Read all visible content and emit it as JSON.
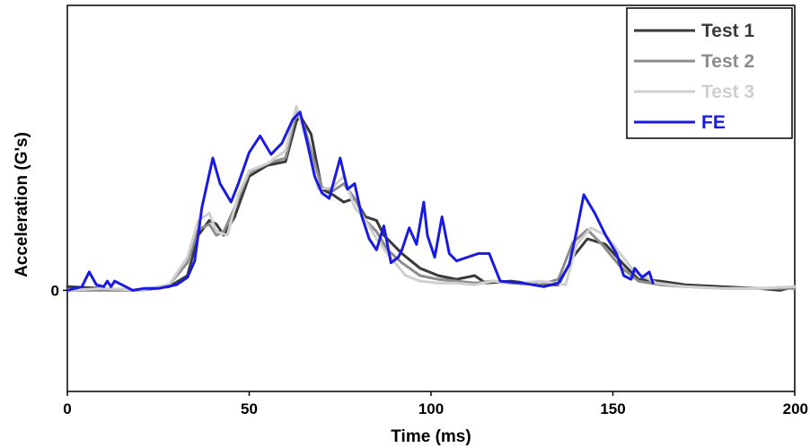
{
  "chart_data": {
    "type": "line",
    "title": "",
    "xlabel": "Time (ms)",
    "ylabel": "Acceleration (G's)",
    "xlim": [
      0,
      200
    ],
    "ylim": [
      -0.55,
      1.55
    ],
    "x_ticks": [
      "0",
      "50",
      "100",
      "150",
      "200"
    ],
    "x_tick_values": [
      0,
      50,
      100,
      150,
      200
    ],
    "y_ticks": [
      "0"
    ],
    "y_tick_values": [
      0
    ],
    "grid": false,
    "legend": "top-right",
    "series": [
      {
        "name": "Test 1",
        "color": "#3a3a3a",
        "points": [
          [
            0,
            0.02
          ],
          [
            10,
            0.01
          ],
          [
            20,
            0.0
          ],
          [
            28,
            0.02
          ],
          [
            33,
            0.08
          ],
          [
            36,
            0.3
          ],
          [
            39,
            0.38
          ],
          [
            41,
            0.36
          ],
          [
            43,
            0.3
          ],
          [
            46,
            0.4
          ],
          [
            50,
            0.62
          ],
          [
            55,
            0.68
          ],
          [
            60,
            0.7
          ],
          [
            63,
            0.92
          ],
          [
            64,
            0.95
          ],
          [
            67,
            0.85
          ],
          [
            70,
            0.55
          ],
          [
            73,
            0.52
          ],
          [
            76,
            0.48
          ],
          [
            79,
            0.5
          ],
          [
            82,
            0.4
          ],
          [
            85,
            0.38
          ],
          [
            87,
            0.3
          ],
          [
            92,
            0.2
          ],
          [
            97,
            0.12
          ],
          [
            102,
            0.08
          ],
          [
            107,
            0.06
          ],
          [
            112,
            0.08
          ],
          [
            115,
            0.04
          ],
          [
            122,
            0.05
          ],
          [
            130,
            0.03
          ],
          [
            135,
            0.03
          ],
          [
            139,
            0.18
          ],
          [
            143,
            0.28
          ],
          [
            148,
            0.25
          ],
          [
            153,
            0.14
          ],
          [
            157,
            0.06
          ],
          [
            163,
            0.05
          ],
          [
            170,
            0.03
          ],
          [
            180,
            0.02
          ],
          [
            190,
            0.01
          ],
          [
            196,
            0.0
          ],
          [
            200,
            0.02
          ]
        ]
      },
      {
        "name": "Test 2",
        "color": "#8c8c8c",
        "points": [
          [
            0,
            0.0
          ],
          [
            10,
            0.0
          ],
          [
            20,
            0.0
          ],
          [
            28,
            0.03
          ],
          [
            33,
            0.15
          ],
          [
            36,
            0.33
          ],
          [
            39,
            0.36
          ],
          [
            41,
            0.3
          ],
          [
            43,
            0.32
          ],
          [
            46,
            0.45
          ],
          [
            50,
            0.64
          ],
          [
            55,
            0.69
          ],
          [
            60,
            0.72
          ],
          [
            63,
            0.97
          ],
          [
            65,
            0.9
          ],
          [
            67,
            0.76
          ],
          [
            70,
            0.56
          ],
          [
            73,
            0.54
          ],
          [
            76,
            0.58
          ],
          [
            79,
            0.5
          ],
          [
            82,
            0.38
          ],
          [
            85,
            0.32
          ],
          [
            88,
            0.22
          ],
          [
            92,
            0.15
          ],
          [
            97,
            0.08
          ],
          [
            102,
            0.06
          ],
          [
            107,
            0.05
          ],
          [
            112,
            0.04
          ],
          [
            117,
            0.05
          ],
          [
            122,
            0.04
          ],
          [
            130,
            0.03
          ],
          [
            135,
            0.06
          ],
          [
            139,
            0.26
          ],
          [
            143,
            0.33
          ],
          [
            147,
            0.25
          ],
          [
            152,
            0.13
          ],
          [
            157,
            0.05
          ],
          [
            163,
            0.03
          ],
          [
            170,
            0.02
          ],
          [
            180,
            0.01
          ],
          [
            190,
            0.01
          ],
          [
            200,
            0.01
          ]
        ]
      },
      {
        "name": "Test 3",
        "color": "#cfcfcf",
        "points": [
          [
            0,
            0.0
          ],
          [
            10,
            0.01
          ],
          [
            20,
            0.0
          ],
          [
            28,
            0.03
          ],
          [
            33,
            0.18
          ],
          [
            36,
            0.38
          ],
          [
            39,
            0.42
          ],
          [
            41,
            0.32
          ],
          [
            44,
            0.3
          ],
          [
            47,
            0.52
          ],
          [
            50,
            0.65
          ],
          [
            55,
            0.69
          ],
          [
            60,
            0.76
          ],
          [
            63,
            1.0
          ],
          [
            66,
            0.8
          ],
          [
            69,
            0.55
          ],
          [
            73,
            0.56
          ],
          [
            76,
            0.62
          ],
          [
            79,
            0.45
          ],
          [
            82,
            0.38
          ],
          [
            85,
            0.28
          ],
          [
            88,
            0.2
          ],
          [
            93,
            0.08
          ],
          [
            97,
            0.05
          ],
          [
            102,
            0.04
          ],
          [
            107,
            0.04
          ],
          [
            112,
            0.03
          ],
          [
            117,
            0.05
          ],
          [
            125,
            0.04
          ],
          [
            130,
            0.05
          ],
          [
            137,
            0.03
          ],
          [
            140,
            0.25
          ],
          [
            144,
            0.34
          ],
          [
            148,
            0.3
          ],
          [
            152,
            0.2
          ],
          [
            156,
            0.1
          ],
          [
            162,
            0.04
          ],
          [
            170,
            0.02
          ],
          [
            180,
            0.01
          ],
          [
            190,
            0.01
          ],
          [
            200,
            0.02
          ]
        ]
      },
      {
        "name": "FE",
        "color": "#1a1ae0",
        "points": [
          [
            0,
            0.0
          ],
          [
            4,
            0.02
          ],
          [
            6,
            0.1
          ],
          [
            8,
            0.03
          ],
          [
            10,
            0.02
          ],
          [
            11,
            0.05
          ],
          [
            12,
            0.02
          ],
          [
            13,
            0.05
          ],
          [
            15,
            0.03
          ],
          [
            18,
            0.0
          ],
          [
            21,
            0.01
          ],
          [
            25,
            0.01
          ],
          [
            30,
            0.03
          ],
          [
            33,
            0.07
          ],
          [
            35,
            0.16
          ],
          [
            37,
            0.45
          ],
          [
            40,
            0.72
          ],
          [
            42,
            0.58
          ],
          [
            45,
            0.48
          ],
          [
            47,
            0.58
          ],
          [
            50,
            0.75
          ],
          [
            53,
            0.84
          ],
          [
            56,
            0.74
          ],
          [
            59,
            0.8
          ],
          [
            62,
            0.93
          ],
          [
            64,
            0.97
          ],
          [
            66,
            0.8
          ],
          [
            68,
            0.62
          ],
          [
            70,
            0.53
          ],
          [
            72,
            0.5
          ],
          [
            75,
            0.72
          ],
          [
            77,
            0.55
          ],
          [
            79,
            0.58
          ],
          [
            81,
            0.4
          ],
          [
            83,
            0.28
          ],
          [
            85,
            0.22
          ],
          [
            87,
            0.35
          ],
          [
            89,
            0.15
          ],
          [
            91,
            0.18
          ],
          [
            92,
            0.22
          ],
          [
            94,
            0.34
          ],
          [
            96,
            0.25
          ],
          [
            98,
            0.48
          ],
          [
            99,
            0.3
          ],
          [
            101,
            0.18
          ],
          [
            103,
            0.4
          ],
          [
            105,
            0.2
          ],
          [
            107,
            0.16
          ],
          [
            110,
            0.18
          ],
          [
            113,
            0.2
          ],
          [
            116,
            0.2
          ],
          [
            119,
            0.05
          ],
          [
            125,
            0.04
          ],
          [
            131,
            0.02
          ],
          [
            135,
            0.04
          ],
          [
            138,
            0.14
          ],
          [
            140,
            0.32
          ],
          [
            142,
            0.52
          ],
          [
            145,
            0.42
          ],
          [
            148,
            0.3
          ],
          [
            151,
            0.2
          ],
          [
            153,
            0.08
          ],
          [
            155,
            0.06
          ],
          [
            156,
            0.12
          ],
          [
            158,
            0.07
          ],
          [
            160,
            0.1
          ],
          [
            161,
            0.04
          ]
        ]
      }
    ]
  }
}
